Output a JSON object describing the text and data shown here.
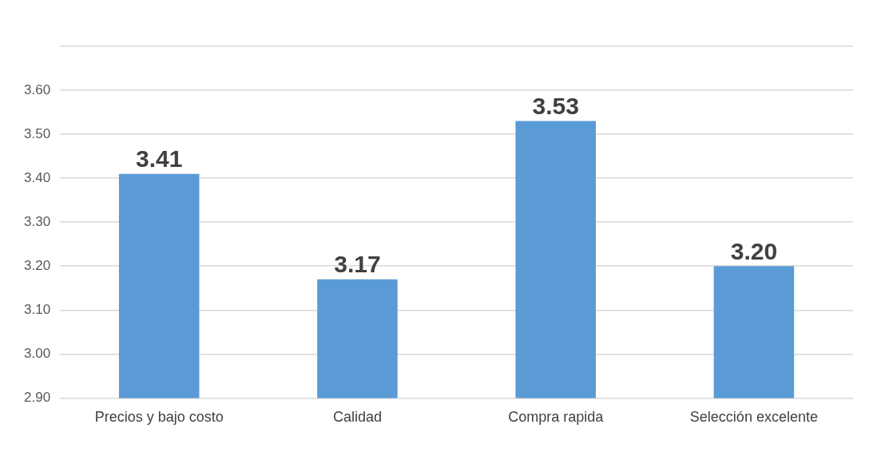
{
  "chart_data": {
    "type": "bar",
    "categories": [
      "Precios y bajo costo",
      "Calidad",
      "Compra rapida",
      "Selección excelente"
    ],
    "values": [
      3.41,
      3.17,
      3.53,
      3.2
    ],
    "value_labels": [
      "3.41",
      "3.17",
      "3.53",
      "3.20"
    ],
    "color": "#5b9bd5",
    "ylim": [
      2.9,
      3.7
    ],
    "yticks": [
      {
        "value": 2.9,
        "label": "2.90"
      },
      {
        "value": 3,
        "label": "3.00"
      },
      {
        "value": 3.1,
        "label": "3.10"
      },
      {
        "value": 3.2,
        "label": "3.20"
      },
      {
        "value": 3.3,
        "label": "3.30"
      },
      {
        "value": 3.4,
        "label": "3.40"
      },
      {
        "value": 3.5,
        "label": "3.50"
      },
      {
        "value": 3.6,
        "label": "3.60"
      },
      {
        "value": 3.7,
        "label": null
      }
    ],
    "grid": "y",
    "legend": false
  }
}
